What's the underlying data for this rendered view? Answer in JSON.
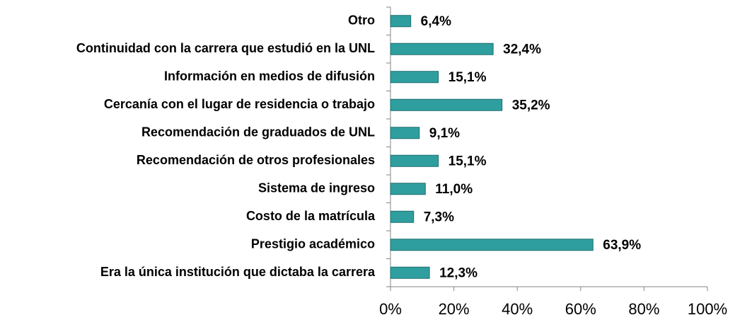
{
  "chart_data": {
    "type": "barh",
    "categories": [
      "Otro",
      "Continuidad con la carrera que estudió en la UNL",
      "Información en medios de difusión",
      "Cercanía con el lugar de residencia o trabajo",
      "Recomendación de graduados de UNL",
      "Recomendación de otros profesionales",
      "Sistema de ingreso",
      "Costo de la matrícula",
      "Prestigio académico",
      "Era la única institución que dictaba la carrera"
    ],
    "values": [
      6.4,
      32.4,
      15.1,
      35.2,
      9.1,
      15.1,
      11.0,
      7.3,
      63.9,
      12.3
    ],
    "value_labels": [
      "6,4%",
      "32,4%",
      "15,1%",
      "35,2%",
      "9,1%",
      "15,1%",
      "11,0%",
      "7,3%",
      "63,9%",
      "12,3%"
    ],
    "color": "#2f9e9e",
    "xlim": [
      0,
      100
    ],
    "xticks": [
      {
        "value": 0,
        "label": "0%"
      },
      {
        "value": 20,
        "label": "20%"
      },
      {
        "value": 40,
        "label": "40%"
      },
      {
        "value": 60,
        "label": "60%"
      },
      {
        "value": 80,
        "label": "80%"
      },
      {
        "value": 100,
        "label": "100%"
      }
    ],
    "grid": false
  }
}
